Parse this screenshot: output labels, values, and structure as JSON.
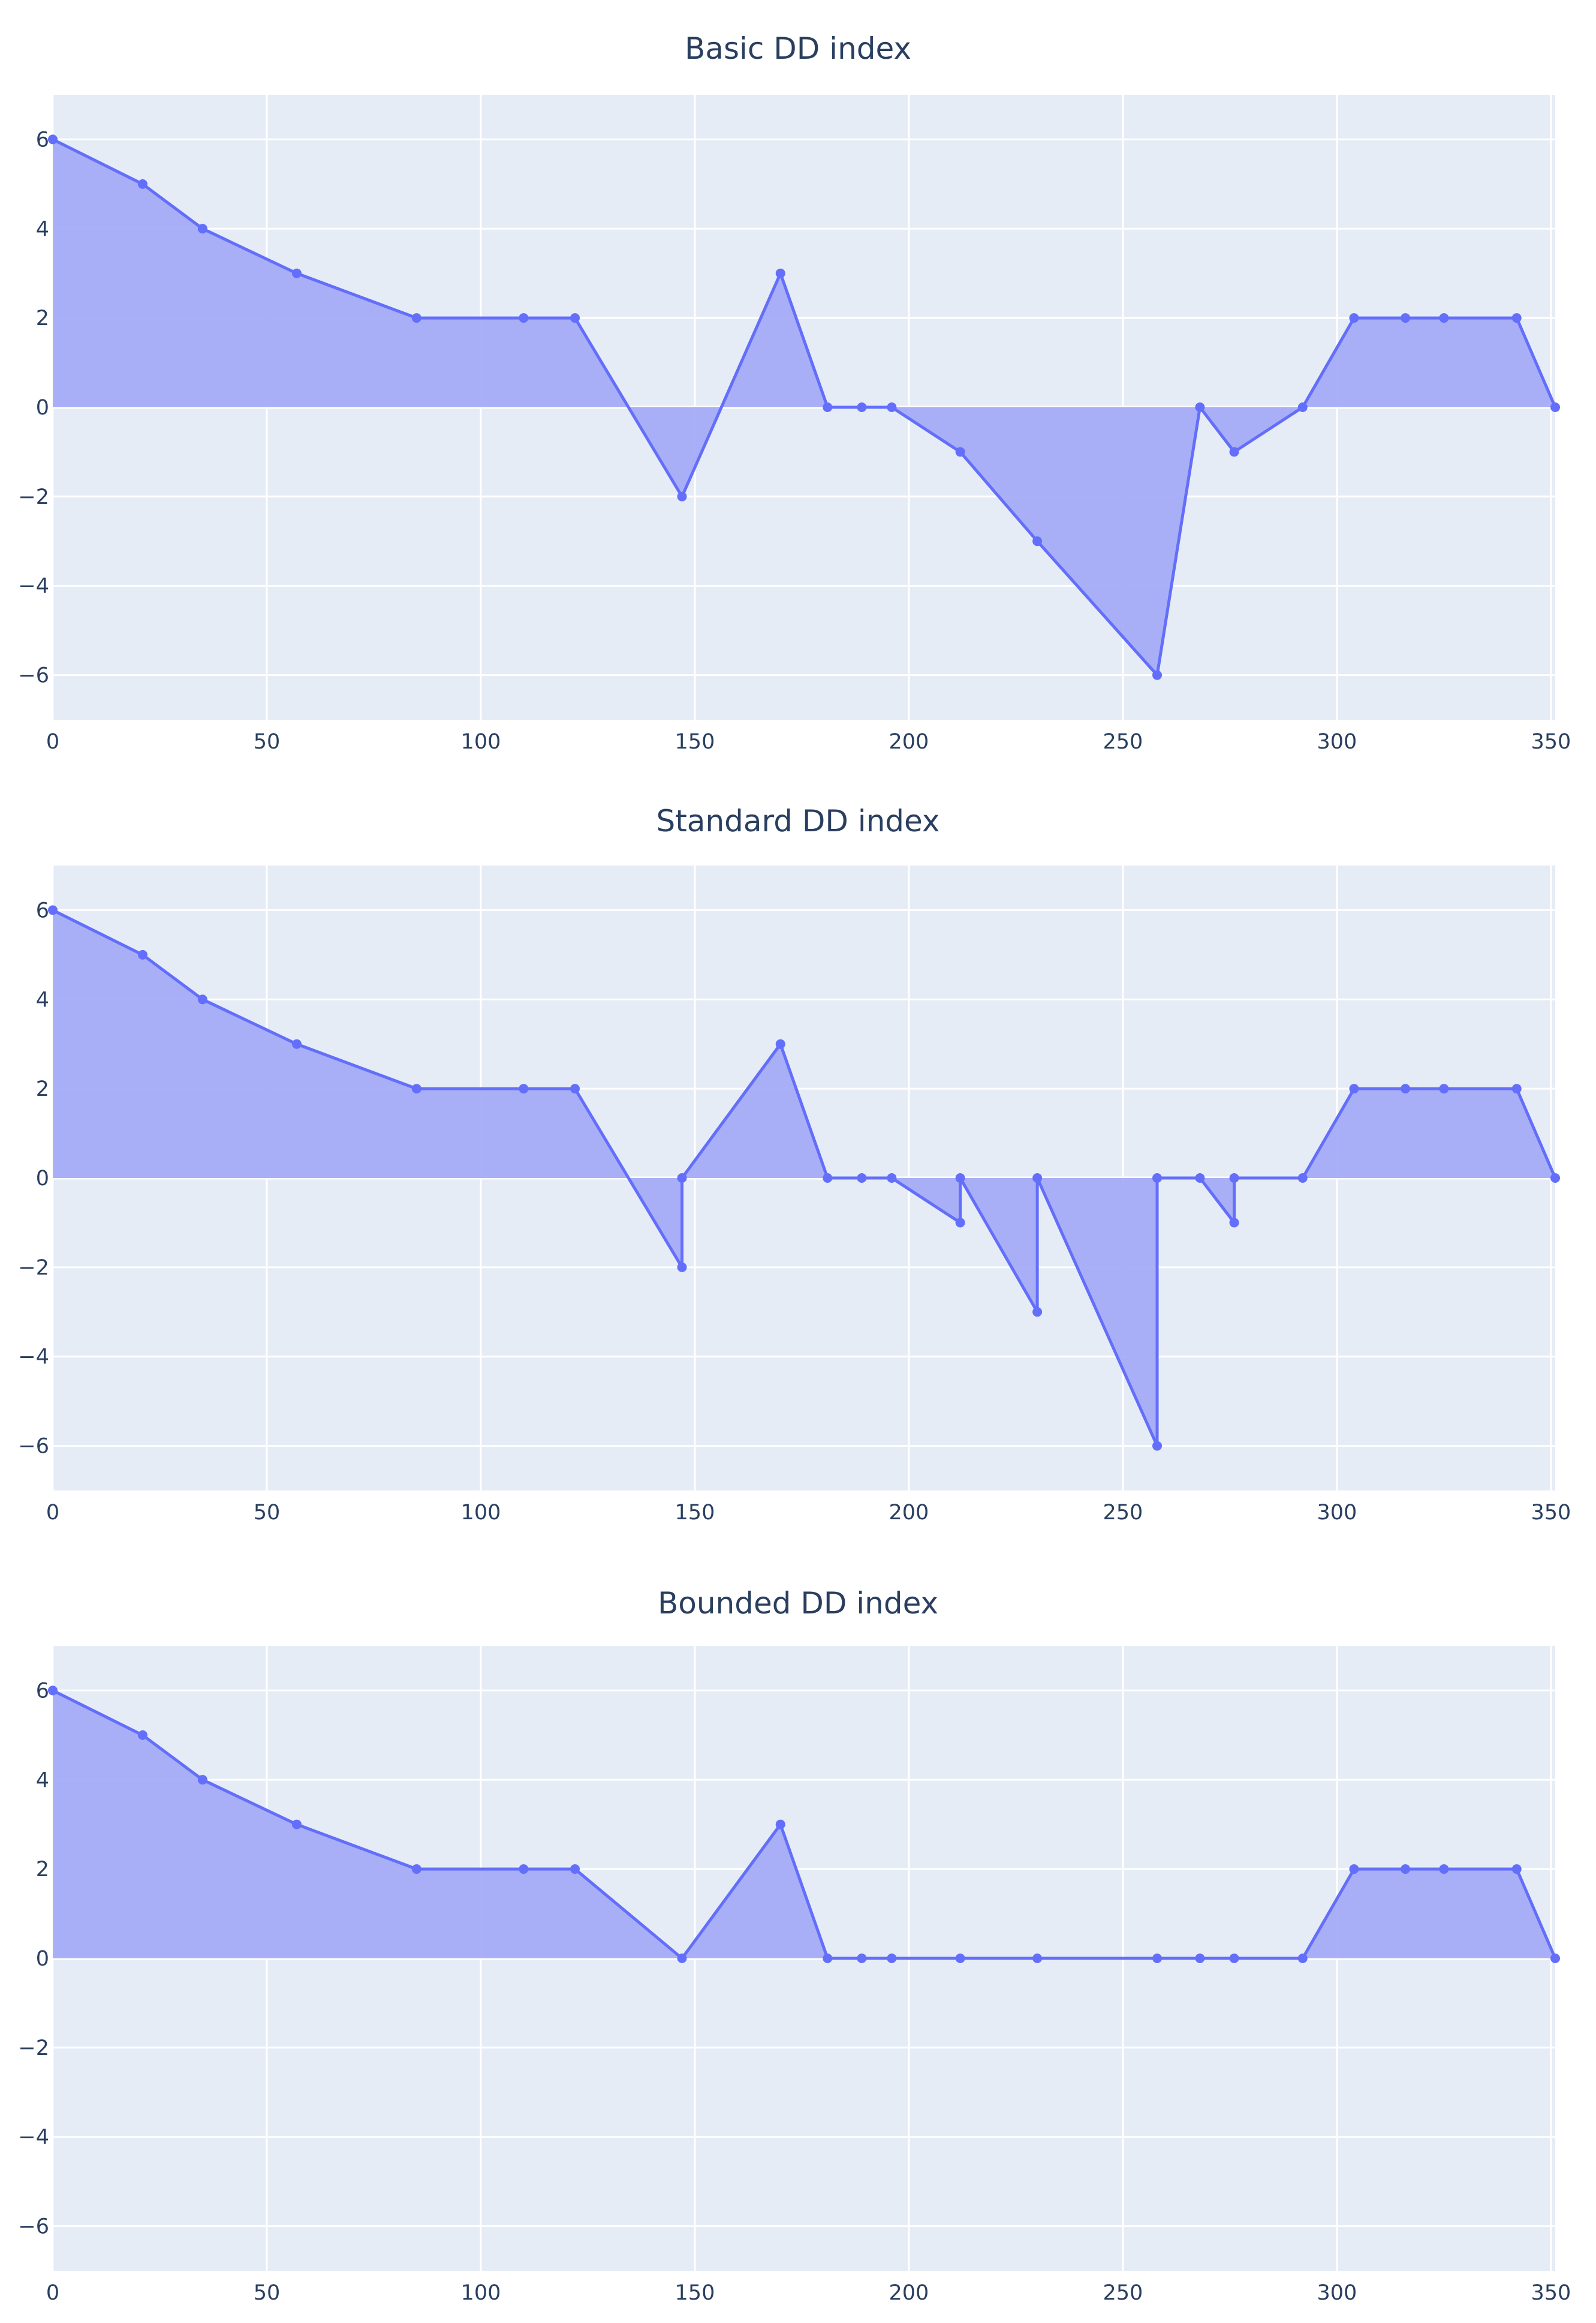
{
  "chart_data": [
    {
      "type": "area",
      "title": "Basic DD index",
      "xlim": [
        0,
        351
      ],
      "ylim": [
        -7,
        7
      ],
      "x_ticks": [
        0,
        50,
        100,
        150,
        200,
        250,
        300,
        350
      ],
      "y_ticks": [
        6,
        4,
        2,
        0,
        -2,
        -4,
        -6
      ],
      "fill": "tozeroy",
      "markers": true,
      "grid": true,
      "legend": "none",
      "colors": {
        "line": "#636efa",
        "fill": "#a5acf7",
        "plot_bg": "#e5ecf6",
        "grid": "#ffffff",
        "text": "#2a3f5f"
      },
      "series": [
        {
          "x": [
            0,
            21,
            35,
            57,
            85,
            110,
            122,
            147,
            170,
            181,
            189,
            196,
            212,
            230,
            258,
            268,
            276,
            292,
            304,
            316,
            325,
            342,
            351
          ],
          "y": [
            6,
            5,
            4,
            3,
            2,
            2,
            2,
            -2,
            3,
            0,
            0,
            0,
            -1,
            -3,
            -6,
            0,
            -1,
            0,
            2,
            2,
            2,
            2,
            0
          ]
        }
      ]
    },
    {
      "type": "area",
      "title": "Standard DD index",
      "xlim": [
        0,
        351
      ],
      "ylim": [
        -7,
        7
      ],
      "x_ticks": [
        0,
        50,
        100,
        150,
        200,
        250,
        300,
        350
      ],
      "y_ticks": [
        6,
        4,
        2,
        0,
        -2,
        -4,
        -6
      ],
      "fill": "tozeroy",
      "markers": true,
      "grid": true,
      "legend": "none",
      "colors": {
        "line": "#636efa",
        "fill": "#a5acf7",
        "plot_bg": "#e5ecf6",
        "grid": "#ffffff",
        "text": "#2a3f5f"
      },
      "series": [
        {
          "x": [
            0,
            21,
            35,
            57,
            85,
            110,
            122,
            147,
            147,
            170,
            181,
            189,
            196,
            212,
            212,
            230,
            230,
            258,
            258,
            268,
            276,
            276,
            292,
            304,
            316,
            325,
            342,
            351
          ],
          "y": [
            6,
            5,
            4,
            3,
            2,
            2,
            2,
            -2,
            0,
            3,
            0,
            0,
            0,
            -1,
            0,
            -3,
            0,
            -6,
            0,
            0,
            -1,
            0,
            0,
            2,
            2,
            2,
            2,
            0
          ]
        }
      ]
    },
    {
      "type": "area",
      "title": "Bounded DD index",
      "xlim": [
        0,
        351
      ],
      "ylim": [
        -7,
        7
      ],
      "x_ticks": [
        0,
        50,
        100,
        150,
        200,
        250,
        300,
        350
      ],
      "y_ticks": [
        6,
        4,
        2,
        0,
        -2,
        -4,
        -6
      ],
      "fill": "tozeroy",
      "markers": true,
      "grid": true,
      "legend": "none",
      "colors": {
        "line": "#636efa",
        "fill": "#a5acf7",
        "plot_bg": "#e5ecf6",
        "grid": "#ffffff",
        "text": "#2a3f5f"
      },
      "series": [
        {
          "x": [
            0,
            21,
            35,
            57,
            85,
            110,
            122,
            147,
            170,
            181,
            189,
            196,
            212,
            230,
            258,
            268,
            276,
            292,
            304,
            316,
            325,
            342,
            351
          ],
          "y": [
            6,
            5,
            4,
            3,
            2,
            2,
            2,
            0,
            3,
            0,
            0,
            0,
            0,
            0,
            0,
            0,
            0,
            0,
            2,
            2,
            2,
            2,
            0
          ]
        }
      ]
    }
  ]
}
